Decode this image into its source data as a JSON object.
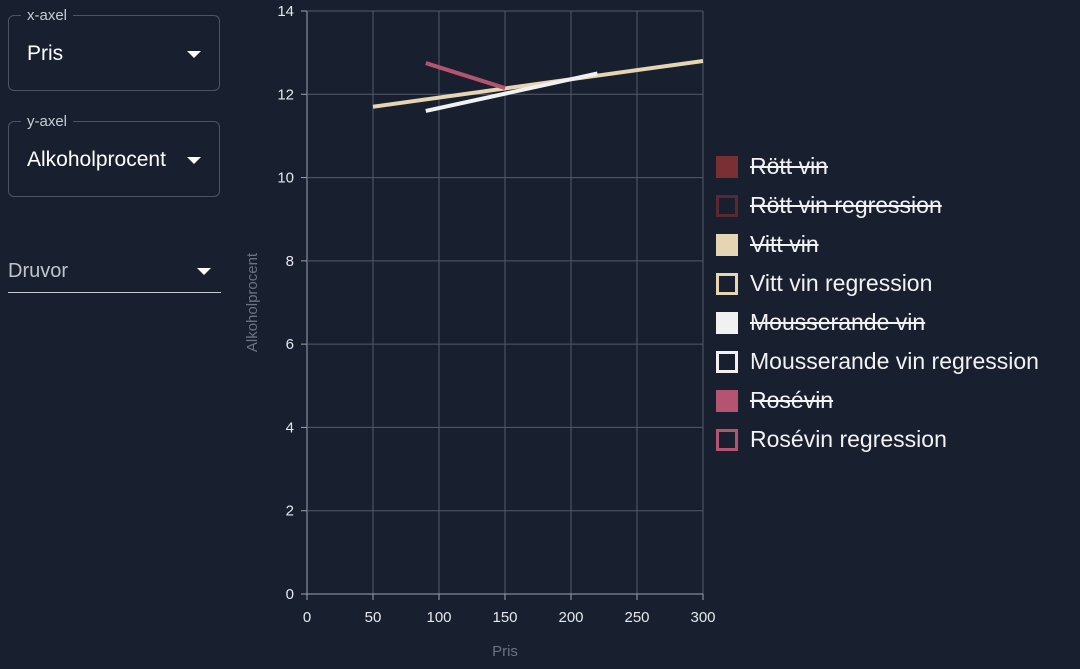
{
  "controls": {
    "x_axis": {
      "label": "x-axel",
      "value": "Pris"
    },
    "y_axis": {
      "label": "y-axel",
      "value": "Alkoholprocent"
    },
    "grapes": {
      "placeholder": "Druvor"
    }
  },
  "chart_data": {
    "type": "line",
    "xlabel": "Pris",
    "ylabel": "Alkoholprocent",
    "xlim": [
      0,
      300
    ],
    "ylim": [
      0,
      14
    ],
    "x_ticks": [
      0,
      50,
      100,
      150,
      200,
      250,
      300
    ],
    "y_ticks": [
      0,
      2,
      4,
      6,
      8,
      10,
      12,
      14
    ],
    "grid": true,
    "legend_position": "right",
    "series": [
      {
        "name": "Vitt vin regression",
        "color": "#e6d5b3",
        "x": [
          50,
          300
        ],
        "y": [
          11.7,
          12.8
        ]
      },
      {
        "name": "Mousserande vin regression",
        "color": "#f1f1f1",
        "x": [
          90,
          220
        ],
        "y": [
          11.6,
          12.5
        ]
      },
      {
        "name": "Rosévin regression",
        "color": "#b55471",
        "x": [
          90,
          150
        ],
        "y": [
          12.75,
          12.15
        ]
      }
    ],
    "legend": [
      {
        "name": "Rött vin",
        "color": "#7a2f35",
        "filled": true,
        "hidden": true
      },
      {
        "name": "Rött vin regression",
        "color": "#5a2830",
        "filled": false,
        "hidden": true
      },
      {
        "name": "Vitt vin",
        "color": "#e6d5b3",
        "filled": true,
        "hidden": true
      },
      {
        "name": "Vitt vin regression",
        "color": "#e6d5b3",
        "filled": false,
        "hidden": false
      },
      {
        "name": "Mousserande vin",
        "color": "#f1f1f1",
        "filled": true,
        "hidden": true
      },
      {
        "name": "Mousserande vin regression",
        "color": "#f1f1f1",
        "filled": false,
        "hidden": false
      },
      {
        "name": "Rosévin",
        "color": "#b55471",
        "filled": true,
        "hidden": true
      },
      {
        "name": "Rosévin regression",
        "color": "#b55471",
        "filled": false,
        "hidden": false
      }
    ]
  }
}
